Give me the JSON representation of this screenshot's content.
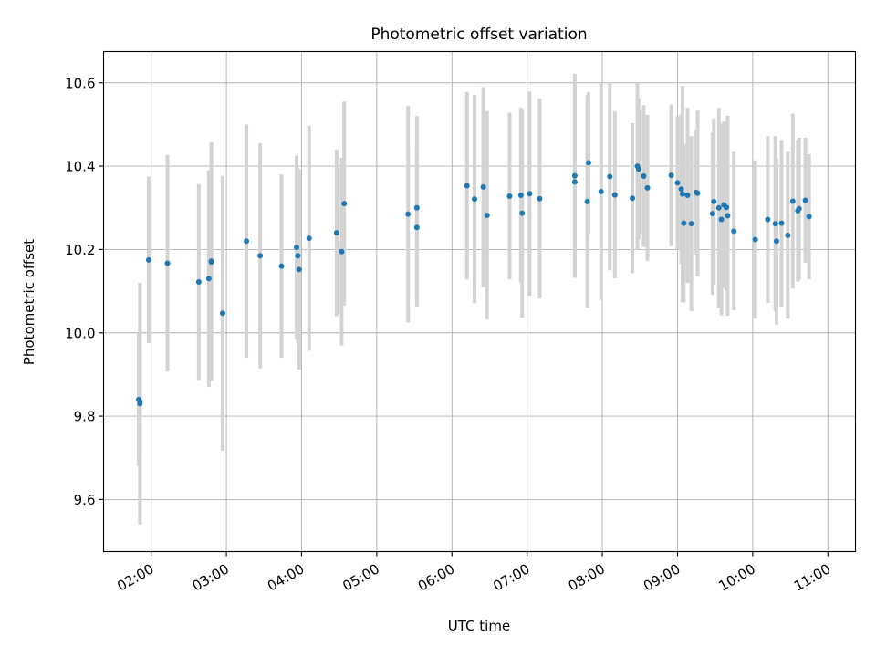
{
  "chart_data": {
    "type": "scatter",
    "title": "Photometric offset variation",
    "xlabel": "UTC time",
    "ylabel": "Photometric offset",
    "x_tick_labels": [
      "02:00",
      "03:00",
      "04:00",
      "05:00",
      "06:00",
      "07:00",
      "08:00",
      "09:00",
      "10:00",
      "11:00"
    ],
    "y_tick_labels": [
      "9.6",
      "9.8",
      "10.0",
      "10.2",
      "10.4",
      "10.6"
    ],
    "y_ticks": [
      9.6,
      9.8,
      10.0,
      10.2,
      10.4,
      10.6
    ],
    "xlim": [
      "01:22",
      "11:22"
    ],
    "ylim": [
      9.475,
      10.675
    ],
    "grid": true,
    "colors": {
      "marker": "#1f77b4",
      "errorbar": "#d3d3d3"
    },
    "series": [
      {
        "x": [
          "01:50",
          "01:51",
          "01:51",
          "01:58",
          "02:13",
          "02:38",
          "02:46",
          "02:48",
          "02:48",
          "02:57",
          "03:16",
          "03:27",
          "03:44",
          "03:56",
          "03:57",
          "03:58",
          "04:06",
          "04:28",
          "04:32",
          "04:34",
          "05:25",
          "05:32",
          "05:32",
          "06:12",
          "06:18",
          "06:25",
          "06:28",
          "06:46",
          "06:55",
          "06:56",
          "07:02",
          "07:10",
          "07:38",
          "07:38",
          "07:48",
          "07:49",
          "07:59",
          "08:06",
          "08:10",
          "08:24",
          "08:28",
          "08:29",
          "08:33",
          "08:36",
          "08:55",
          "09:00",
          "09:03",
          "09:04",
          "09:05",
          "09:08",
          "09:11",
          "09:15",
          "09:16",
          "09:28",
          "09:29",
          "09:33",
          "09:35",
          "09:37",
          "09:39",
          "09:40",
          "09:45",
          "10:02",
          "10:12",
          "10:18",
          "10:19",
          "10:23",
          "10:28",
          "10:32",
          "10:36",
          "10:37",
          "10:42",
          "10:45"
        ],
        "y": [
          9.84,
          9.835,
          9.83,
          10.175,
          10.167,
          10.122,
          10.13,
          10.17,
          10.172,
          10.047,
          10.22,
          10.185,
          10.16,
          10.205,
          10.185,
          10.152,
          10.227,
          10.24,
          10.195,
          10.31,
          10.285,
          10.253,
          10.3,
          10.353,
          10.321,
          10.35,
          10.282,
          10.328,
          10.33,
          10.287,
          10.334,
          10.322,
          10.377,
          10.362,
          10.315,
          10.408,
          10.339,
          10.375,
          10.331,
          10.323,
          10.4,
          10.393,
          10.376,
          10.348,
          10.378,
          10.36,
          10.345,
          10.333,
          10.263,
          10.33,
          10.262,
          10.337,
          10.335,
          10.286,
          10.315,
          10.3,
          10.272,
          10.307,
          10.301,
          10.281,
          10.244,
          10.224,
          10.272,
          10.262,
          10.22,
          10.263,
          10.234,
          10.316,
          10.293,
          10.298,
          10.318,
          10.279
        ],
        "yerr": [
          0.16,
          0.12,
          0.29,
          0.2,
          0.26,
          0.235,
          0.26,
          0.285,
          0.285,
          0.33,
          0.28,
          0.27,
          0.22,
          0.22,
          0.21,
          0.24,
          0.27,
          0.2,
          0.225,
          0.245,
          0.26,
          0.19,
          0.22,
          0.225,
          0.25,
          0.24,
          0.25,
          0.2,
          0.21,
          0.25,
          0.245,
          0.24,
          0.245,
          0.23,
          0.255,
          0.17,
          0.26,
          0.225,
          0.2,
          0.18,
          0.2,
          0.17,
          0.17,
          0.175,
          0.17,
          0.16,
          0.18,
          0.26,
          0.19,
          0.21,
          0.21,
          0.15,
          0.2,
          0.195,
          0.2,
          0.24,
          0.23,
          0.2,
          0.2,
          0.24,
          0.19,
          0.19,
          0.2,
          0.21,
          0.2,
          0.2,
          0.2,
          0.21,
          0.17,
          0.17,
          0.15,
          0.15
        ]
      }
    ]
  }
}
